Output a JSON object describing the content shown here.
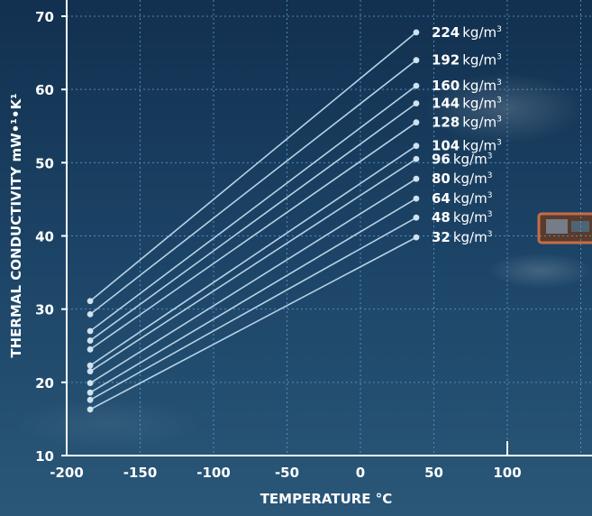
{
  "colors": {
    "background_top": "#12304f",
    "background_mid": "#1c4467",
    "background_bottom": "#2a5778",
    "line": "#b6d3e6",
    "marker": "#cfe2ef",
    "grid": "#5d9fcf",
    "axis": "#ffffff",
    "text": "#ffffff"
  },
  "chart_data": {
    "type": "line",
    "title": "",
    "xlabel": "TEMPERATURE °C",
    "ylabel": "THERMAL CONDUCTIVITY mW•¹•K¹",
    "xlim": [
      -200,
      150
    ],
    "ylim": [
      10,
      70
    ],
    "xticks": [
      "-200",
      "-150",
      "-100",
      "-50",
      "0",
      "50",
      "100"
    ],
    "yticks": [
      "10",
      "20",
      "30",
      "40",
      "50",
      "60",
      "70"
    ],
    "grid": true,
    "unit_label": "kg/m",
    "unit_sup": "3",
    "x": [
      -184,
      38
    ],
    "series": [
      {
        "name": "224",
        "values": [
          31.1,
          67.8
        ]
      },
      {
        "name": "192",
        "values": [
          29.3,
          64.0
        ]
      },
      {
        "name": "160",
        "values": [
          27.0,
          60.5
        ]
      },
      {
        "name": "144",
        "values": [
          25.7,
          58.1
        ]
      },
      {
        "name": "128",
        "values": [
          24.5,
          55.5
        ]
      },
      {
        "name": "104",
        "values": [
          22.3,
          52.3
        ]
      },
      {
        "name": "96",
        "values": [
          21.5,
          50.5
        ]
      },
      {
        "name": "80",
        "values": [
          19.9,
          47.8
        ]
      },
      {
        "name": "64",
        "values": [
          18.6,
          45.1
        ]
      },
      {
        "name": "48",
        "values": [
          17.6,
          42.5
        ]
      },
      {
        "name": "32",
        "values": [
          16.3,
          39.8
        ]
      }
    ]
  }
}
